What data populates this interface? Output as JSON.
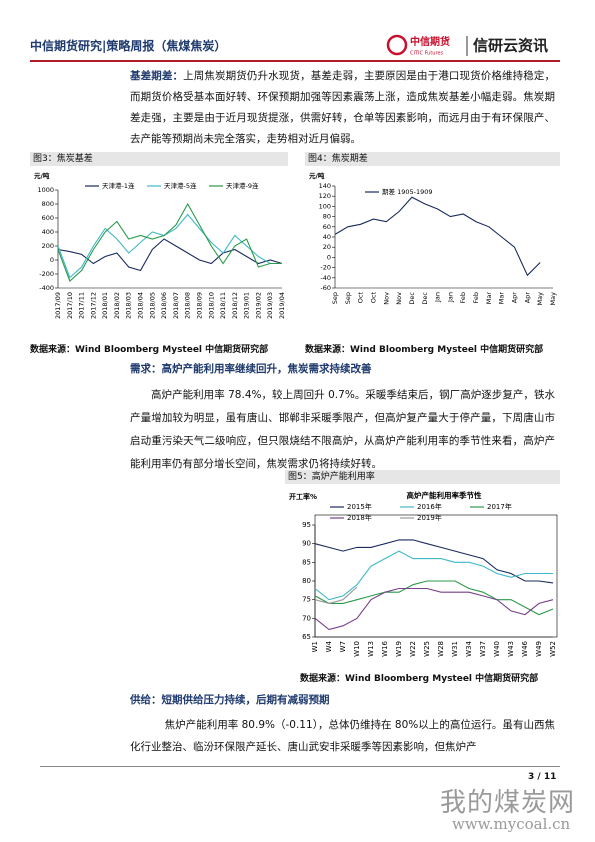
{
  "header": {
    "title": "中信期货研究|策略周报（焦煤焦炭）",
    "logo": "中信期货",
    "logo_en": "CITIC Futures",
    "brand": "信研云资讯"
  },
  "paragraphs": [
    {
      "lead": "基差期差：",
      "text": "上周焦炭期货仍升水现货，基差走弱，主要原因是由于港口现货价格维持稳定，而期货价格受基本面好转、环保预期加强等因素震荡上涨，造成焦炭基差小幅走弱。焦炭期差走强，主要是由于近月现货提涨，供需好转，仓单等因素影响，而远月由于有环保限产、去产能等预期尚未完全落实，走势相对近月偏弱。"
    },
    {
      "text": "高炉产能利用率 78.4%，较上周回升 0.7%。采暖季结束后，钢厂高炉逐步复产，铁水产量增加较为明显，虽有唐山、邯郸非采暖季限产，但高炉复产量大于停产量，下周唐山市启动重污染天气二级响应，但只限烧结不限高炉，从高炉产能利用率的季节性来看，高炉产能利用率仍有部分增长空间，焦炭需求仍将持续好转。"
    },
    {
      "text": "焦炉产能利用率 80.9%（-0.11），总体仍维持在 80%以上的高位运行。虽有山西焦化行业整治、临汾环保限产延长、唐山武安非采暖季等因素影响，但焦炉产"
    }
  ],
  "sections": [
    "需求：高炉产能利用率继续回升，焦炭需求持续改善",
    "供给：短期供给压力持续，后期有减弱预期"
  ],
  "figures": [
    {
      "caption": "图3：焦炭基差",
      "source": "数据来源：Wind Bloomberg Mysteel 中信期货研究部"
    },
    {
      "caption": "图4：焦炭期差",
      "source": "数据来源：Wind Bloomberg Mysteel 中信期货研究部"
    },
    {
      "caption": "图5：高炉产能利用率",
      "source": "数据来源：Wind Bloomberg Mysteel 中信期货研究部"
    }
  ],
  "chart_data": [
    {
      "type": "line",
      "y_label": "元/吨",
      "categories": [
        "2017/09",
        "2017/10",
        "2017/11",
        "2017/12",
        "2018/01",
        "2018/02",
        "2018/03",
        "2018/04",
        "2018/05",
        "2018/06",
        "2018/07",
        "2018/08",
        "2018/09",
        "2018/10",
        "2018/11",
        "2018/12",
        "2019/01",
        "2019/02",
        "2019/03",
        "2019/04"
      ],
      "series": [
        {
          "name": "天津港-1连",
          "color": "#1a2a5e",
          "values": [
            150,
            120,
            80,
            -50,
            50,
            100,
            -100,
            -150,
            150,
            300,
            200,
            100,
            0,
            -50,
            100,
            150,
            50,
            -50,
            0,
            -50
          ]
        },
        {
          "name": "天津港-5连",
          "color": "#3fb8c8",
          "values": [
            200,
            -250,
            -100,
            200,
            450,
            300,
            100,
            250,
            400,
            350,
            450,
            650,
            450,
            250,
            100,
            350,
            200,
            50,
            -50,
            -50
          ]
        },
        {
          "name": "天津港-9连",
          "color": "#2a9a4a",
          "values": [
            150,
            -300,
            -150,
            150,
            400,
            550,
            300,
            350,
            300,
            350,
            500,
            800,
            500,
            200,
            -50,
            200,
            300,
            -100,
            -50,
            -50
          ]
        }
      ],
      "ylim": [
        -400,
        1000
      ],
      "yticks": [
        -400,
        -200,
        0,
        200,
        400,
        600,
        800,
        1000
      ]
    },
    {
      "type": "line",
      "y_label": "元/吨",
      "categories": [
        "Sep",
        "Sep",
        "Oct",
        "Oct",
        "Nov",
        "Nov",
        "Dec",
        "Dec",
        "Jan",
        "Jan",
        "Feb",
        "Feb",
        "Mar",
        "Mar",
        "Apr",
        "Apr",
        "May",
        "May"
      ],
      "series": [
        {
          "name": "期差 1905-1909",
          "color": "#1a2a5e",
          "values": [
            45,
            60,
            65,
            75,
            70,
            90,
            118,
            105,
            95,
            80,
            85,
            70,
            60,
            40,
            20,
            -35,
            -10,
            null
          ]
        }
      ],
      "ylim": [
        -60,
        140
      ],
      "yticks": [
        -60,
        -40,
        -20,
        0,
        20,
        40,
        60,
        80,
        100,
        120,
        140
      ]
    },
    {
      "type": "line",
      "title": "高炉产能利用率季节性",
      "y_label": "开工率%",
      "categories": [
        "W1",
        "W4",
        "W7",
        "W10",
        "W13",
        "W16",
        "W19",
        "W22",
        "W25",
        "W28",
        "W31",
        "W34",
        "W37",
        "W40",
        "W43",
        "W46",
        "W49",
        "W52"
      ],
      "series": [
        {
          "name": "2015年",
          "color": "#1a2a5e",
          "values": [
            90,
            89,
            88,
            89,
            89,
            90,
            91,
            91,
            90,
            89,
            88,
            87,
            86,
            83,
            82,
            80,
            80,
            79.5
          ]
        },
        {
          "name": "2016年",
          "color": "#3fb8c8",
          "values": [
            78,
            75,
            76,
            79,
            84,
            86,
            88,
            86,
            86,
            86,
            85,
            85,
            84,
            82,
            81,
            82,
            82,
            82
          ]
        },
        {
          "name": "2017年",
          "color": "#2a9a4a",
          "values": [
            76,
            74,
            74,
            75,
            76,
            77,
            77,
            79,
            80,
            80,
            80,
            78,
            77,
            75,
            75,
            73,
            71,
            72.5
          ]
        },
        {
          "name": "2018年",
          "color": "#7a3f8a",
          "values": [
            70,
            67,
            68,
            70,
            75,
            77,
            78,
            78,
            78,
            77,
            77,
            77,
            76,
            75,
            72,
            71,
            74,
            75
          ]
        },
        {
          "name": "2019年",
          "color": "#9a9a9a",
          "values": [
            75,
            74,
            75,
            78.4,
            null,
            null,
            null,
            null,
            null,
            null,
            null,
            null,
            null,
            null,
            null,
            null,
            null,
            null
          ]
        }
      ],
      "ylim": [
        65,
        95
      ],
      "yticks": [
        65,
        70,
        75,
        80,
        85,
        90,
        95
      ]
    }
  ],
  "page_number": "3 / 11",
  "watermark": {
    "name": "我的煤炭网",
    "url": "www.mycoal.cn"
  }
}
